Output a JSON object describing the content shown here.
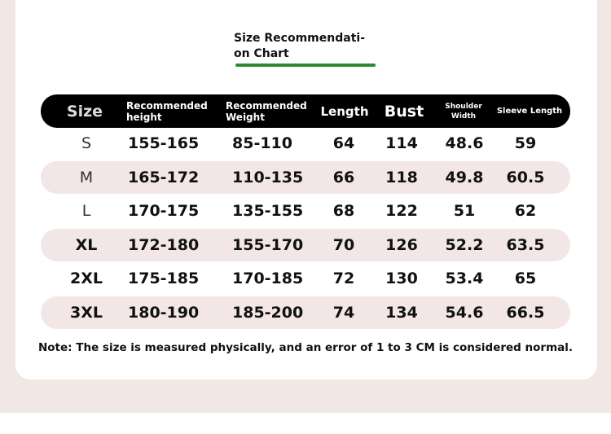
{
  "title": [
    "Size Recommendati-",
    "on Chart"
  ],
  "colors": {
    "accent": "#2a8a36",
    "header_bg": "#000000",
    "row_highlight": "#f3e6e6",
    "page_bg": "#f1e7e4"
  },
  "headers": [
    "Size",
    "Recommended height",
    "Recommended Weight",
    "Length",
    "Bust",
    "Shoulder Width",
    "Sleeve Length"
  ],
  "rows": [
    [
      "S",
      "155-165",
      "85-110",
      "64",
      "114",
      "48.6",
      "59"
    ],
    [
      "M",
      "165-172",
      "110-135",
      "66",
      "118",
      "49.8",
      "60.5"
    ],
    [
      "L",
      "170-175",
      "135-155",
      "68",
      "122",
      "51",
      "62"
    ],
    [
      "XL",
      "172-180",
      "155-170",
      "70",
      "126",
      "52.2",
      "63.5"
    ],
    [
      "2XL",
      "175-185",
      "170-185",
      "72",
      "130",
      "53.4",
      "65"
    ],
    [
      "3XL",
      "180-190",
      "185-200",
      "74",
      "134",
      "54.6",
      "66.5"
    ]
  ],
  "note": "Note: The size is measured physically, and an error of 1 to 3 CM is considered normal."
}
